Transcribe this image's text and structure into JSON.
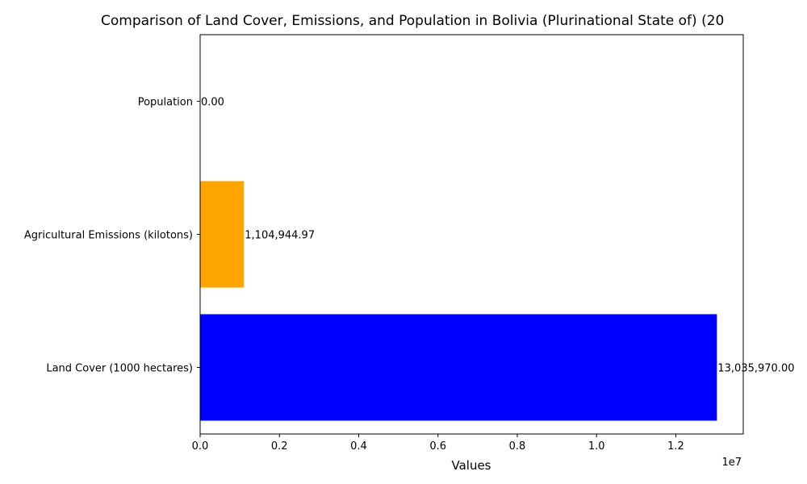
{
  "chart_data": {
    "type": "bar",
    "orientation": "horizontal",
    "title": "Comparison of Land Cover, Emissions, and Population in Bolivia (Plurinational State of) (20",
    "xlabel": "Values",
    "ylabel": "",
    "x_scale_note": "1e7",
    "xlim": [
      0,
      13700000
    ],
    "grid": false,
    "categories": [
      "Land Cover (1000 hectares)",
      "Agricultural Emissions (kilotons)",
      "Population"
    ],
    "values": [
      13035970.0,
      1104944.97,
      0.0
    ],
    "value_labels": [
      "13,035,970.00",
      "1,104,944.97",
      "0.00"
    ],
    "colors": [
      "#0000ff",
      "#ffa500",
      "#008000"
    ],
    "x_ticks": [
      0,
      2000000,
      4000000,
      6000000,
      8000000,
      10000000,
      12000000
    ],
    "x_tick_labels": [
      "0.0",
      "0.2",
      "0.4",
      "0.6",
      "0.8",
      "1.0",
      "1.2"
    ]
  }
}
